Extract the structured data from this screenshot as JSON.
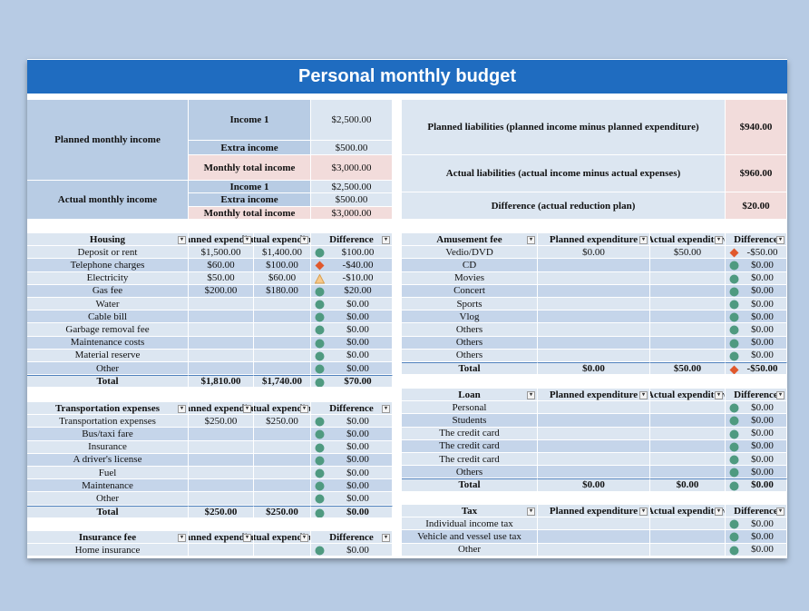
{
  "title": "Personal monthly budget",
  "summary": {
    "planned": {
      "label": "Planned monthly income",
      "rows": [
        [
          "Income 1",
          "$2,500.00"
        ],
        [
          "Extra income",
          "$500.00"
        ],
        [
          "Monthly total income",
          "$3,000.00"
        ]
      ]
    },
    "actual": {
      "label": "Actual monthly income",
      "rows": [
        [
          "Income 1",
          "$2,500.00"
        ],
        [
          "Extra income",
          "$500.00"
        ],
        [
          "Monthly total income",
          "$3,000.00"
        ]
      ]
    },
    "liabilities": [
      [
        "Planned liabilities (planned income minus planned expenditure)",
        "$940.00"
      ],
      [
        "Actual liabilities (actual income minus actual expenses)",
        "$960.00"
      ],
      [
        "Difference (actual reduction plan)",
        "$20.00"
      ]
    ]
  },
  "tables": [
    {
      "headers": [
        "Housing",
        "Planned expenditure",
        "Actual expenditure",
        "Difference"
      ],
      "rows": [
        [
          "Deposit or rent",
          "$1,500.00",
          "$1,400.00",
          "$100.00"
        ],
        [
          "Telephone charges",
          "$60.00",
          "$100.00",
          "-$40.00"
        ],
        [
          "Electricity",
          "$50.00",
          "$60.00",
          "-$10.00"
        ],
        [
          "Gas fee",
          "$200.00",
          "$180.00",
          "$20.00"
        ],
        [
          "Water",
          null,
          null,
          "$0.00"
        ],
        [
          "Cable bill",
          null,
          null,
          "$0.00"
        ],
        [
          "Garbage removal fee",
          null,
          null,
          "$0.00"
        ],
        [
          "Maintenance costs",
          null,
          null,
          "$0.00"
        ],
        [
          "Material reserve",
          null,
          null,
          "$0.00"
        ],
        [
          "Other",
          null,
          null,
          "$0.00"
        ]
      ],
      "icons": [
        "circle",
        "diamond",
        "triangle",
        "circle",
        "circle",
        "circle",
        "circle",
        "circle",
        "circle",
        "circle"
      ],
      "total": [
        "Total",
        "$1,810.00",
        "$1,740.00",
        "$70.00"
      ],
      "total_icon": "circle"
    },
    {
      "headers": [
        "Transportation expenses",
        "Planned expenditure",
        "Actual expenditure",
        "Difference"
      ],
      "rows": [
        [
          "Transportation expenses",
          "$250.00",
          "$250.00",
          "$0.00"
        ],
        [
          "Bus/taxi fare",
          null,
          null,
          "$0.00"
        ],
        [
          "Insurance",
          null,
          null,
          "$0.00"
        ],
        [
          "A driver's license",
          null,
          null,
          "$0.00"
        ],
        [
          "Fuel",
          null,
          null,
          "$0.00"
        ],
        [
          "Maintenance",
          null,
          null,
          "$0.00"
        ],
        [
          "Other",
          null,
          null,
          "$0.00"
        ]
      ],
      "icons": [
        "circle",
        "circle",
        "circle",
        "circle",
        "circle",
        "circle",
        "circle"
      ],
      "total": [
        "Total",
        "$250.00",
        "$250.00",
        "$0.00"
      ],
      "total_icon": "circle"
    },
    {
      "headers": [
        "Insurance fee",
        "Planned expenditure",
        "Actual expenditure",
        "Difference"
      ],
      "rows": [
        [
          "Home insurance",
          null,
          null,
          "$0.00"
        ]
      ],
      "icons": [
        "circle"
      ]
    },
    {
      "headers": [
        "Amusement fee",
        "Planned expenditure",
        "Actual expenditure",
        "Difference"
      ],
      "rows": [
        [
          "Vedio/DVD",
          "$0.00",
          "$50.00",
          "-$50.00"
        ],
        [
          "CD",
          null,
          null,
          "$0.00"
        ],
        [
          "Movies",
          null,
          null,
          "$0.00"
        ],
        [
          "Concert",
          null,
          null,
          "$0.00"
        ],
        [
          "Sports",
          null,
          null,
          "$0.00"
        ],
        [
          "Vlog",
          null,
          null,
          "$0.00"
        ],
        [
          "Others",
          null,
          null,
          "$0.00"
        ],
        [
          "Others",
          null,
          null,
          "$0.00"
        ],
        [
          "Others",
          null,
          null,
          "$0.00"
        ]
      ],
      "icons": [
        "diamond",
        "circle",
        "circle",
        "circle",
        "circle",
        "circle",
        "circle",
        "circle",
        "circle"
      ],
      "total": [
        "Total",
        "$0.00",
        "$50.00",
        "-$50.00"
      ],
      "total_icon": "diamond"
    },
    {
      "headers": [
        "Loan",
        "Planned expenditure",
        "Actual expenditure",
        "Difference"
      ],
      "rows": [
        [
          "Personal",
          null,
          null,
          "$0.00"
        ],
        [
          "Students",
          null,
          null,
          "$0.00"
        ],
        [
          "The credit card",
          null,
          null,
          "$0.00"
        ],
        [
          "The credit card",
          null,
          null,
          "$0.00"
        ],
        [
          "The credit card",
          null,
          null,
          "$0.00"
        ],
        [
          "Others",
          null,
          null,
          "$0.00"
        ]
      ],
      "icons": [
        "circle",
        "circle",
        "circle",
        "circle",
        "circle",
        "circle"
      ],
      "total": [
        "Total",
        "$0.00",
        "$0.00",
        "$0.00"
      ],
      "total_icon": "circle"
    },
    {
      "headers": [
        "Tax",
        "Planned expenditure",
        "Actual expenditure",
        "Difference"
      ],
      "rows": [
        [
          "Individual income tax",
          null,
          null,
          "$0.00"
        ],
        [
          "Vehicle and vessel use tax",
          null,
          null,
          "$0.00"
        ],
        [
          "Other",
          null,
          null,
          "$0.00"
        ]
      ],
      "icons": [
        "circle",
        "circle",
        "circle"
      ]
    }
  ]
}
